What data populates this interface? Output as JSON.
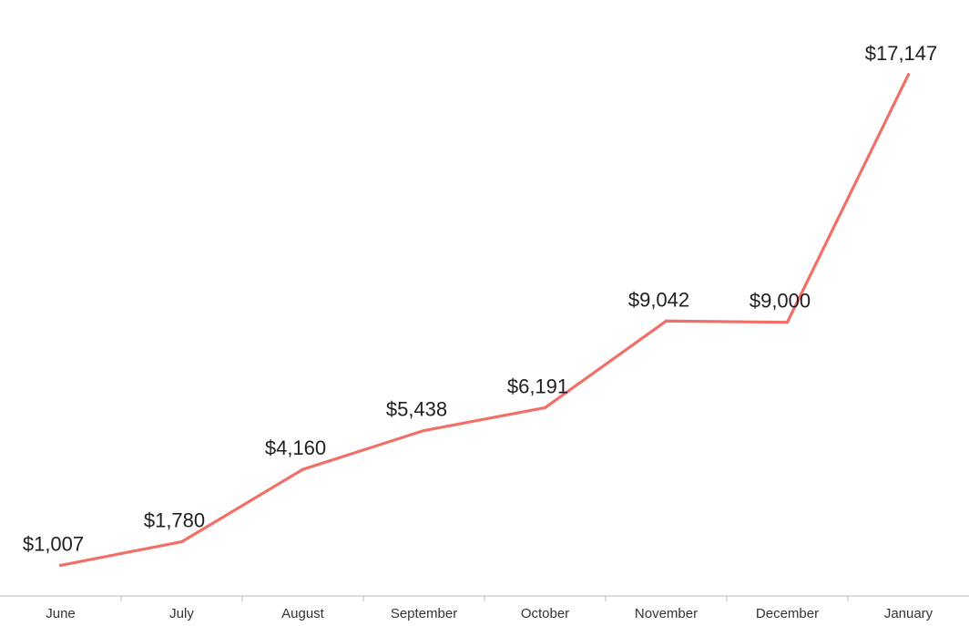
{
  "chart_data": {
    "type": "line",
    "categories": [
      "June",
      "July",
      "August",
      "September",
      "October",
      "November",
      "December",
      "January"
    ],
    "series": [
      {
        "values": [
          1007,
          1780,
          4160,
          5438,
          6191,
          9042,
          9000,
          17147
        ],
        "labels": [
          "$1,007",
          "$1,780",
          "$4,160",
          "$5,438",
          "$6,191",
          "$9,042",
          "$9,000",
          "$17,147"
        ],
        "color": "#f07068"
      }
    ],
    "ylim": [
      0,
      18400
    ],
    "grid": false,
    "legend": "none",
    "axis_color": "#bbbbbb"
  }
}
